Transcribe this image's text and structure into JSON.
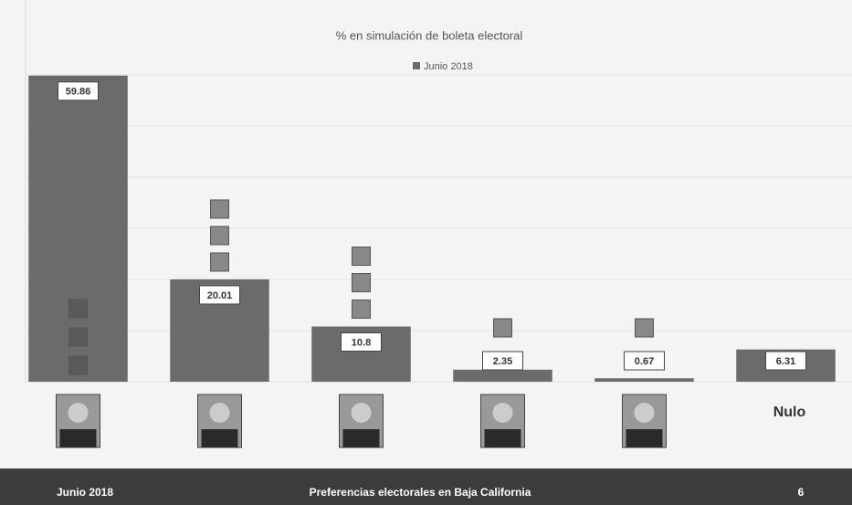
{
  "chart_data": {
    "type": "bar",
    "title": "% en simulación de boleta electoral",
    "categories": [
      null,
      null,
      null,
      null,
      null,
      "Nulo"
    ],
    "series": [
      {
        "name": "Junio 2018",
        "color": "#6b6b6b",
        "values": [
          59.86,
          20.01,
          10.8,
          2.35,
          0.67,
          6.31
        ]
      }
    ],
    "ylim": [
      0,
      60
    ],
    "yticks": [
      0,
      10,
      20,
      30,
      40,
      50,
      60
    ],
    "grid": true,
    "legend": "top"
  },
  "footer": {
    "left": "Junio 2018",
    "center": "Preferencias electorales en Baja California",
    "right": "6"
  }
}
